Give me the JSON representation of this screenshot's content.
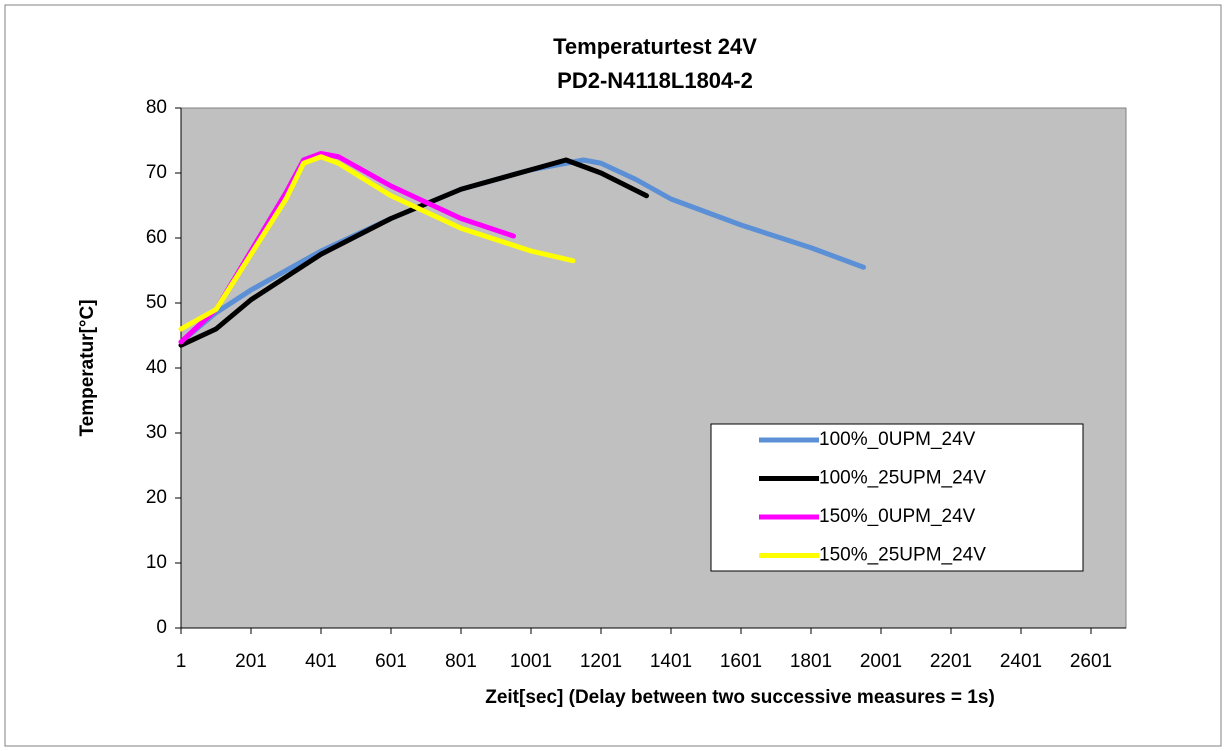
{
  "chart_data": {
    "type": "line",
    "title": "Temperaturtest 24V",
    "subtitle": "PD2-N4118L1804-2",
    "x_label": "Zeit[sec] (Delay between two successive measures =  1s)",
    "y_label": "Temperatur[°C]",
    "xlim": [
      1,
      2701
    ],
    "ylim": [
      0,
      80
    ],
    "xticks": [
      1,
      201,
      401,
      601,
      801,
      1001,
      1201,
      1401,
      1601,
      1801,
      2001,
      2201,
      2401,
      2601
    ],
    "yticks": [
      0,
      10,
      20,
      30,
      40,
      50,
      60,
      70,
      80
    ],
    "grid": false,
    "legend": "lower right",
    "series": [
      {
        "name": "100%_0UPM_24V",
        "color": "#5b8fd6",
        "x": [
          1,
          101,
          201,
          401,
          601,
          801,
          1001,
          1151,
          1201,
          1301,
          1401,
          1601,
          1801,
          1951
        ],
        "values": [
          44,
          48.5,
          52,
          58,
          63,
          67.5,
          70.5,
          72,
          71.5,
          69,
          66,
          62,
          58.5,
          55.5
        ]
      },
      {
        "name": "100%_25UPM_24V",
        "color": "#000000",
        "x": [
          1,
          101,
          201,
          401,
          601,
          801,
          1001,
          1101,
          1201,
          1331
        ],
        "values": [
          43.5,
          46,
          50.5,
          57.5,
          63,
          67.5,
          70.5,
          72,
          70,
          66.5
        ]
      },
      {
        "name": "150%_0UPM_24V",
        "color": "#ff00ff",
        "x": [
          1,
          101,
          201,
          301,
          351,
          401,
          451,
          601,
          801,
          951
        ],
        "values": [
          44,
          49,
          58,
          67,
          72,
          73,
          72.5,
          68,
          63,
          60.3
        ]
      },
      {
        "name": "150%_25UPM_24V",
        "color": "#ffff00",
        "x": [
          1,
          101,
          201,
          301,
          351,
          401,
          451,
          601,
          801,
          1001,
          1121
        ],
        "values": [
          46,
          49,
          57.5,
          66,
          71.5,
          72.5,
          71.5,
          66.5,
          61.5,
          58,
          56.5
        ]
      }
    ]
  }
}
